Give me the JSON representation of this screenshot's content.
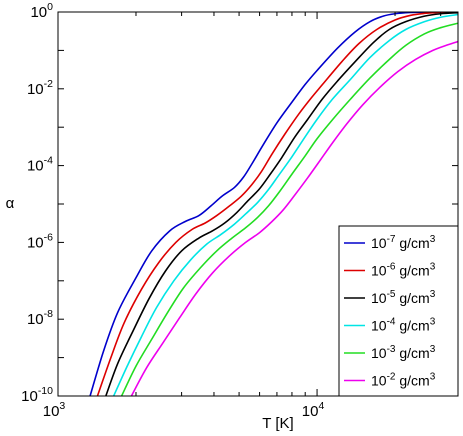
{
  "chart_data": {
    "type": "line",
    "xlabel": "T [K]",
    "ylabel": "α",
    "x_scale": "log",
    "y_scale": "log",
    "xlim": [
      1000,
      35000
    ],
    "ylim": [
      1e-10,
      1
    ],
    "grid": false,
    "legend_position": "bottom-right",
    "x_ticks": [
      {
        "value": 1000,
        "base": "10",
        "exp": "3"
      },
      {
        "value": 10000,
        "base": "10",
        "exp": "4"
      }
    ],
    "y_ticks": [
      {
        "value": 1,
        "base": "10",
        "exp": "0"
      },
      {
        "value": 0.01,
        "base": "10",
        "exp": "-2"
      },
      {
        "value": 0.0001,
        "base": "10",
        "exp": "-4"
      },
      {
        "value": 1e-06,
        "base": "10",
        "exp": "-6"
      },
      {
        "value": 1e-08,
        "base": "10",
        "exp": "-8"
      },
      {
        "value": 1e-10,
        "base": "10",
        "exp": "-10"
      }
    ],
    "series": [
      {
        "name": "10^-7 g/cm^3",
        "label_base": "10",
        "label_exp": "-7",
        "label_unit": "g/cm",
        "label_unit_exp": "3",
        "color": "#0000cc",
        "x": [
          1330,
          1500,
          1700,
          2000,
          2300,
          2700,
          3100,
          3500,
          3900,
          4300,
          4800,
          5200,
          5600,
          6200,
          7000,
          8000,
          9000,
          10000,
          12000,
          14000,
          16000,
          18000,
          20000,
          23000,
          26000,
          30000,
          35000
        ],
        "y": [
          1e-10,
          1.5e-09,
          1.5e-08,
          1.2e-07,
          6e-07,
          2e-06,
          3.5e-06,
          5e-06,
          9e-06,
          1.6e-05,
          2.7e-05,
          5e-05,
          0.00011,
          0.00035,
          0.0013,
          0.0045,
          0.013,
          0.03,
          0.115,
          0.3,
          0.56,
          0.78,
          0.9,
          0.97,
          0.99,
          1.0,
          1.0
        ]
      },
      {
        "name": "10^-6 g/cm^3",
        "label_base": "10",
        "label_exp": "-6",
        "label_unit": "g/cm",
        "label_unit_exp": "3",
        "color": "#dd0000",
        "x": [
          1420,
          1600,
          1800,
          2100,
          2450,
          2850,
          3300,
          3700,
          4100,
          4600,
          5100,
          5600,
          6100,
          6700,
          7500,
          8500,
          9500,
          10500,
          12500,
          14500,
          17000,
          20000,
          23000,
          26000,
          30000,
          35000
        ],
        "y": [
          1e-10,
          1e-09,
          8e-09,
          6e-08,
          3e-07,
          1e-06,
          2.2e-06,
          3.2e-06,
          5e-06,
          9e-06,
          1.6e-05,
          3.2e-05,
          7e-05,
          0.0002,
          0.00065,
          0.0022,
          0.0058,
          0.013,
          0.052,
          0.15,
          0.35,
          0.62,
          0.82,
          0.92,
          0.98,
          1.0
        ]
      },
      {
        "name": "10^-5 g/cm^3",
        "label_base": "10",
        "label_exp": "-5",
        "label_unit": "g/cm",
        "label_unit_exp": "3",
        "color": "#000000",
        "x": [
          1530,
          1700,
          1950,
          2250,
          2600,
          3000,
          3500,
          3950,
          4400,
          4900,
          5400,
          6000,
          6600,
          7300,
          8200,
          9200,
          10500,
          12000,
          14000,
          16500,
          19000,
          22000,
          26000,
          30000,
          35000
        ],
        "y": [
          1e-10,
          7e-10,
          5e-09,
          3.5e-08,
          1.8e-07,
          6e-07,
          1.3e-06,
          2e-06,
          3.2e-06,
          6e-06,
          1.2e-05,
          2.5e-05,
          6e-05,
          0.00016,
          0.00055,
          0.0016,
          0.0055,
          0.016,
          0.05,
          0.16,
          0.35,
          0.56,
          0.78,
          0.9,
          0.96
        ]
      },
      {
        "name": "10^-4 g/cm^3",
        "label_base": "10",
        "label_exp": "-4",
        "label_unit": "g/cm",
        "label_unit_exp": "3",
        "color": "#00e5e5",
        "x": [
          1640,
          1850,
          2100,
          2400,
          2800,
          3250,
          3750,
          4250,
          4800,
          5300,
          5900,
          6500,
          7100,
          7900,
          8800,
          10000,
          11500,
          13500,
          16000,
          19000,
          22000,
          26000,
          30000,
          35000
        ],
        "y": [
          1e-10,
          6e-10,
          3.5e-09,
          2e-08,
          1e-07,
          3.5e-07,
          9e-07,
          1.6e-06,
          3e-06,
          5.5e-06,
          1.1e-05,
          2.4e-05,
          5.5e-05,
          0.00015,
          0.00045,
          0.0016,
          0.0055,
          0.018,
          0.065,
          0.18,
          0.35,
          0.56,
          0.73,
          0.86
        ]
      },
      {
        "name": "10^-3 g/cm^3",
        "label_base": "10",
        "label_exp": "-3",
        "label_unit": "g/cm",
        "label_unit_exp": "3",
        "color": "#22dd22",
        "x": [
          1760,
          2000,
          2300,
          2650,
          3050,
          3550,
          4100,
          4700,
          5300,
          5900,
          6500,
          7200,
          8000,
          9000,
          10000,
          11500,
          13500,
          16000,
          19000,
          22000,
          26000,
          30000,
          35000
        ],
        "y": [
          1e-10,
          6e-10,
          3e-09,
          1.5e-08,
          6.5e-08,
          2.2e-07,
          6e-07,
          1.3e-06,
          2.4e-06,
          4.5e-06,
          9e-06,
          2.2e-05,
          6e-05,
          0.00018,
          0.0005,
          0.0016,
          0.0055,
          0.019,
          0.058,
          0.135,
          0.27,
          0.39,
          0.51
        ]
      },
      {
        "name": "10^-2 g/cm^3",
        "label_base": "10",
        "label_exp": "-2",
        "label_unit": "g/cm",
        "label_unit_exp": "3",
        "color": "#ee00ee",
        "x": [
          1920,
          2200,
          2550,
          2950,
          3400,
          3950,
          4600,
          5300,
          6000,
          6700,
          7400,
          8200,
          9200,
          10300,
          11500,
          13000,
          15000,
          17500,
          20500,
          24000,
          28000,
          32000,
          35000
        ],
        "y": [
          1e-10,
          5.5e-10,
          2.5e-09,
          1.1e-08,
          4.5e-08,
          1.6e-07,
          4.5e-07,
          1e-06,
          1.8e-06,
          3.5e-06,
          7e-06,
          1.7e-05,
          4.8e-05,
          0.00014,
          0.0004,
          0.0012,
          0.0038,
          0.011,
          0.028,
          0.058,
          0.1,
          0.14,
          0.17
        ]
      }
    ]
  }
}
